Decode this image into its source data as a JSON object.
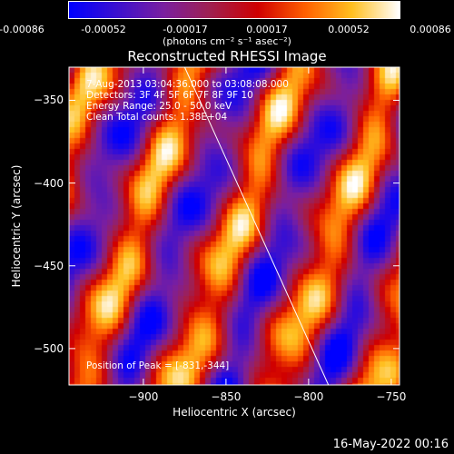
{
  "colorbar": {
    "ticks": [
      "-0.00086",
      "-0.00052",
      "-0.00017",
      "0.00017",
      "0.00052",
      "0.00086"
    ],
    "unit_label": "(photons cm⁻² s⁻¹ asec⁻²)",
    "colors": [
      "#0000ff",
      "#3b10d0",
      "#7a1fa0",
      "#a02050",
      "#d00000",
      "#ff6000",
      "#ffc020",
      "#ffffff"
    ]
  },
  "chart_data": {
    "type": "heatmap",
    "title": "Reconstructed RHESSI Image",
    "xlabel": "Heliocentric X (arcsec)",
    "ylabel": "Heliocentric Y (arcsec)",
    "xlim": [
      -945,
      -745
    ],
    "ylim": [
      -522,
      -330
    ],
    "x_ticks": [
      -900,
      -850,
      -800,
      -750
    ],
    "y_ticks": [
      -350,
      -400,
      -450,
      -500
    ],
    "x_tick_labels": [
      "−900",
      "−850",
      "−800",
      "−750"
    ],
    "y_tick_labels": [
      "−350",
      "−400",
      "−450",
      "−500"
    ],
    "color_range": [
      -0.00086,
      0.00086
    ],
    "limb_line": [
      [
        -875,
        -330
      ],
      [
        -788,
        -522
      ]
    ],
    "peak": [
      -831,
      -344
    ],
    "annotations": [
      "7-Aug-2013 03:04:36.000 to 03:08:08.000",
      "Detectors: 3F 4F 5F 6F 7F 8F 9F 10",
      "Energy Range: 25.0 - 50.0 keV",
      "Clean     Total counts: 1.38E+04",
      "Position of Peak = [-831,-344]"
    ]
  },
  "footer": {
    "date": "16-May-2022 00:16"
  }
}
